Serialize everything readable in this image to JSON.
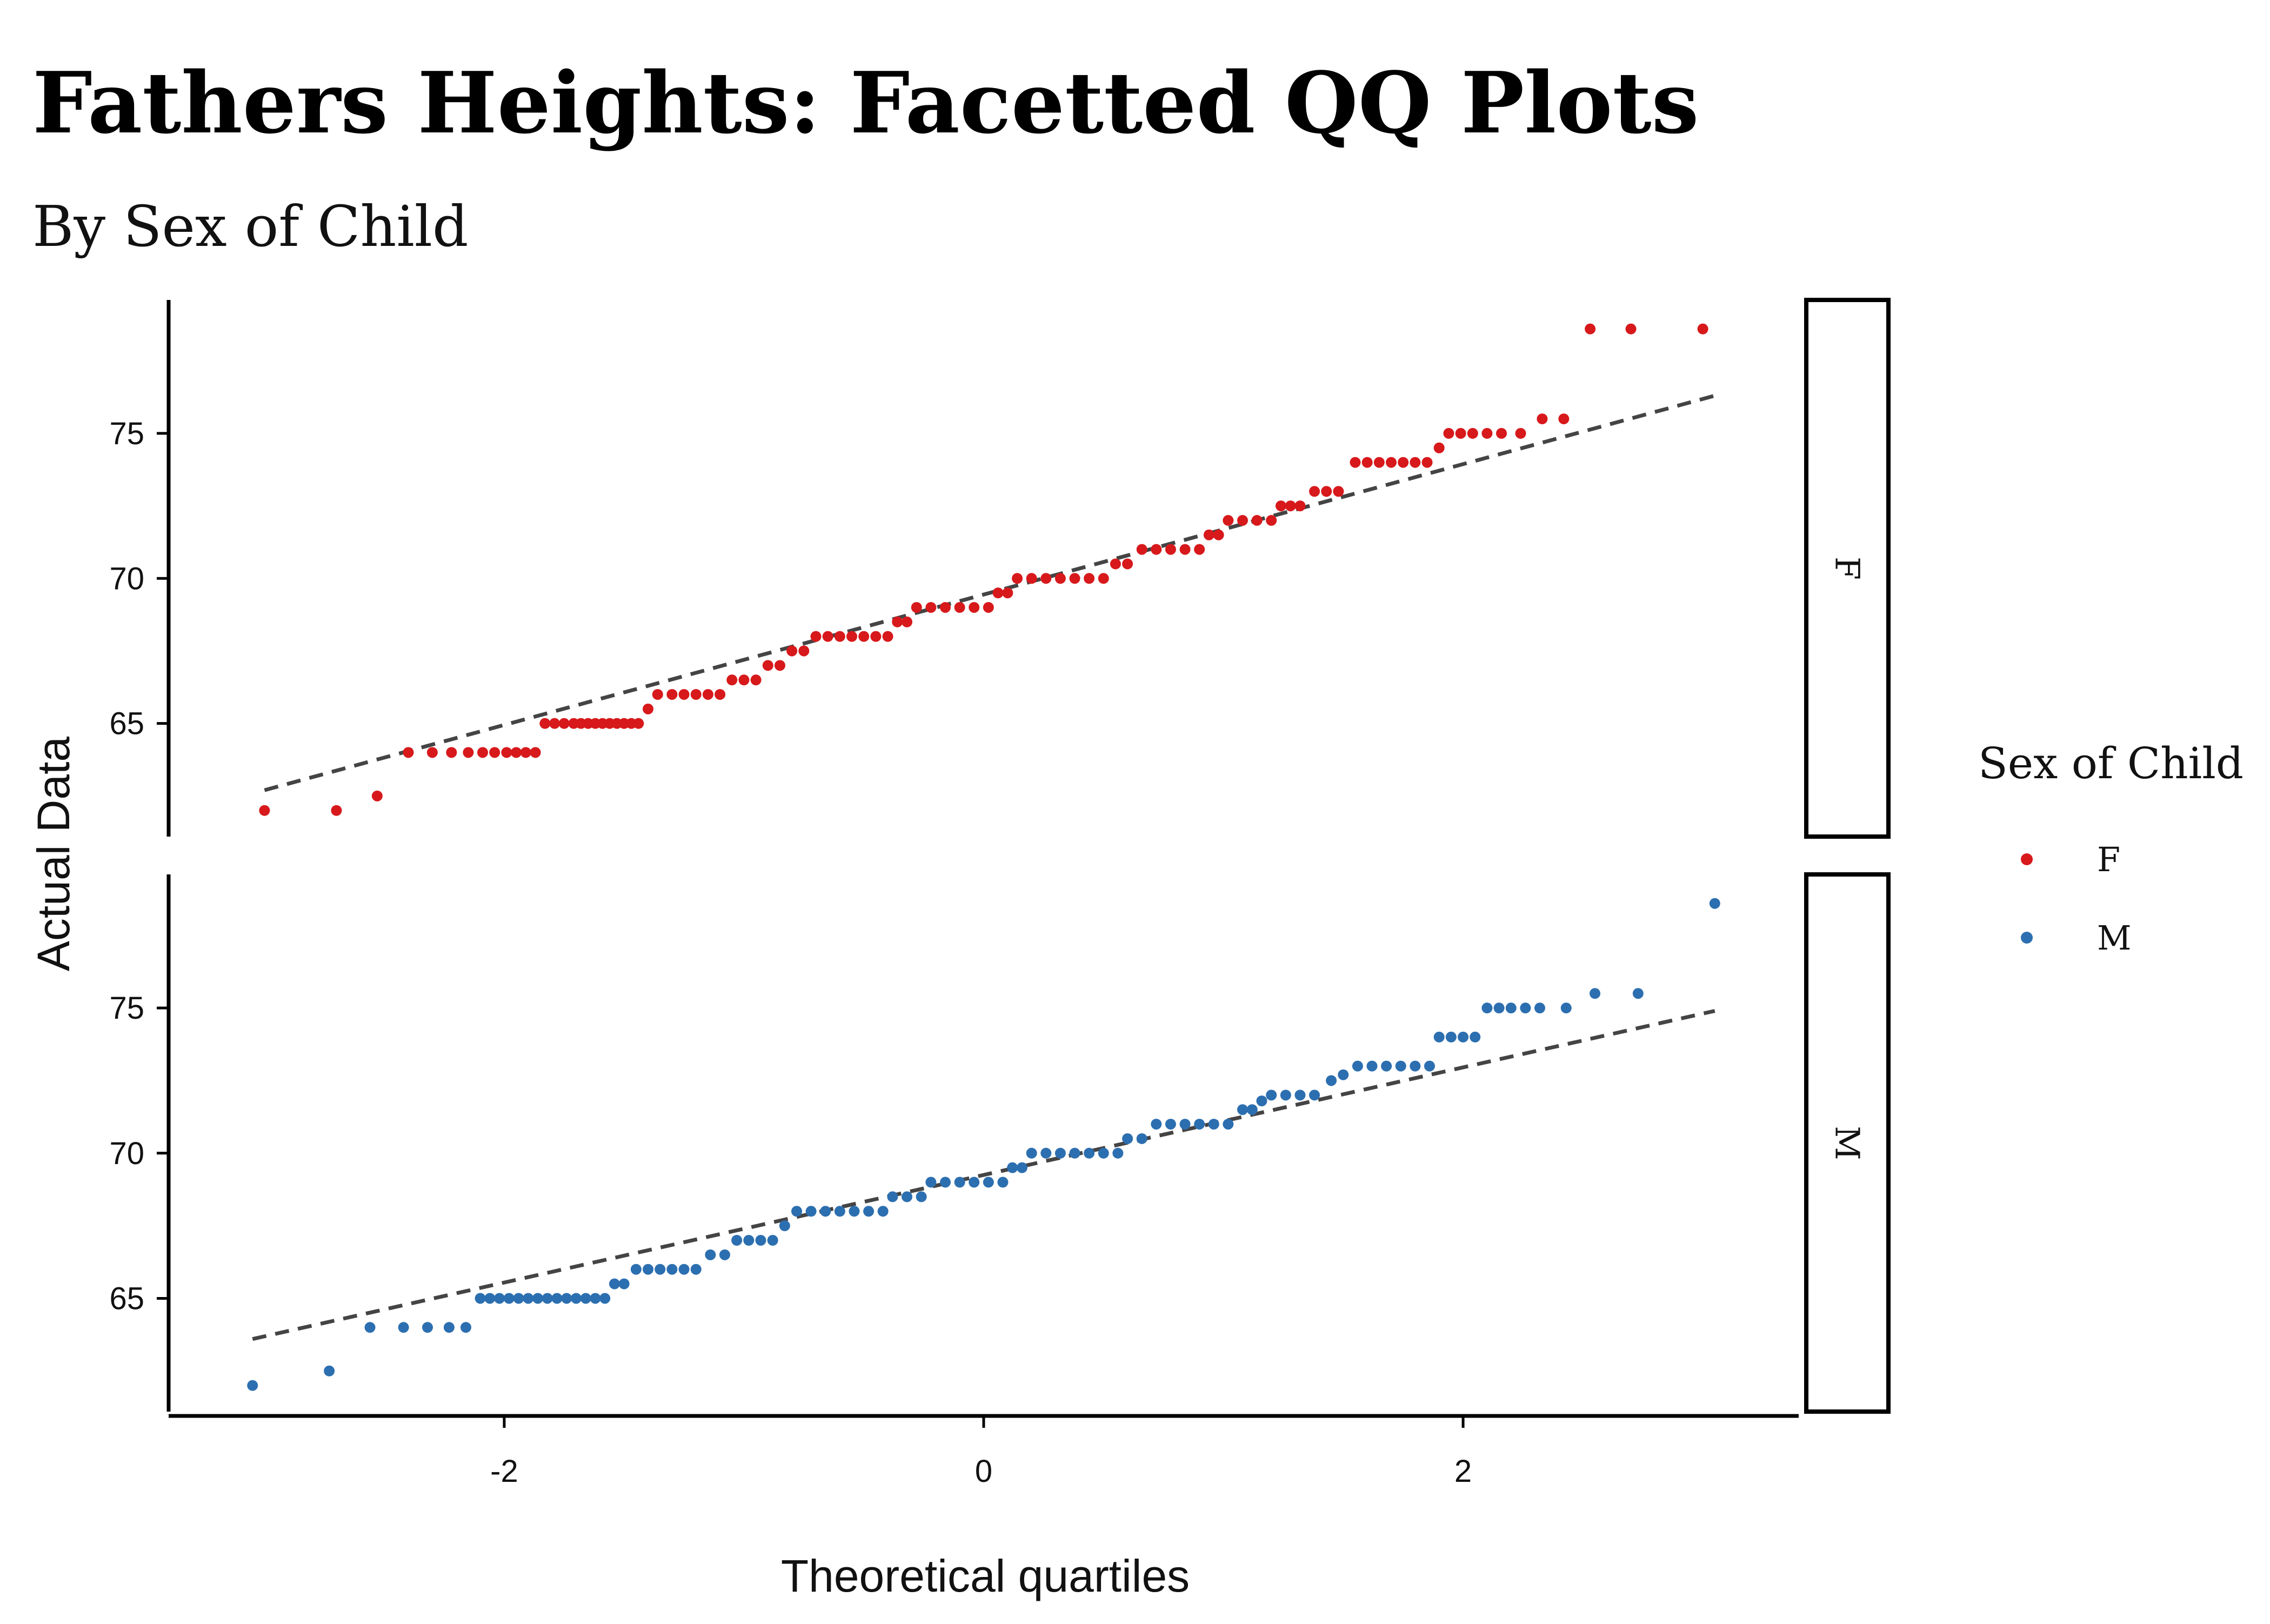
{
  "chart_data": {
    "type": "scatter",
    "title": "Fathers Heights: Facetted QQ Plots",
    "subtitle": "By Sex of Child",
    "xlabel": "Theoretical quartiles",
    "ylabel": "Actual Data",
    "xlim": [
      -3.4,
      3.4
    ],
    "ylim": [
      61.1,
      79.6
    ],
    "xticks": [
      -2,
      0,
      2
    ],
    "xtick_labels": [
      "-2",
      "0",
      "2"
    ],
    "yticks": [
      65,
      70,
      75
    ],
    "ytick_labels": [
      "65",
      "70",
      "75"
    ],
    "grid": false,
    "facets": [
      "F",
      "M"
    ],
    "legend": {
      "title": "Sex of Child",
      "placement": "right",
      "entries": [
        {
          "label": "F",
          "color": "#d7191c"
        },
        {
          "label": "M",
          "color": "#2c6fb0"
        }
      ]
    },
    "reference_line_color": "#444444",
    "series": [
      {
        "name": "F",
        "color": "#d7191c",
        "points": [
          [
            -3.0,
            62.0
          ],
          [
            -2.7,
            62.0
          ],
          [
            -2.53,
            62.5
          ],
          [
            -2.4,
            64.0
          ],
          [
            -2.3,
            64.0
          ],
          [
            -2.22,
            64.0
          ],
          [
            -2.15,
            64.0
          ],
          [
            -2.09,
            64.0
          ],
          [
            -2.04,
            64.0
          ],
          [
            -1.99,
            64.0
          ],
          [
            -1.95,
            64.0
          ],
          [
            -1.91,
            64.0
          ],
          [
            -1.87,
            64.0
          ],
          [
            -1.83,
            65.0
          ],
          [
            -1.79,
            65.0
          ],
          [
            -1.75,
            65.0
          ],
          [
            -1.71,
            65.0
          ],
          [
            -1.68,
            65.0
          ],
          [
            -1.65,
            65.0
          ],
          [
            -1.62,
            65.0
          ],
          [
            -1.59,
            65.0
          ],
          [
            -1.56,
            65.0
          ],
          [
            -1.53,
            65.0
          ],
          [
            -1.5,
            65.0
          ],
          [
            -1.47,
            65.0
          ],
          [
            -1.44,
            65.0
          ],
          [
            -1.4,
            65.5
          ],
          [
            -1.36,
            66.0
          ],
          [
            -1.3,
            66.0
          ],
          [
            -1.25,
            66.0
          ],
          [
            -1.2,
            66.0
          ],
          [
            -1.15,
            66.0
          ],
          [
            -1.1,
            66.0
          ],
          [
            -1.05,
            66.5
          ],
          [
            -1.0,
            66.5
          ],
          [
            -0.95,
            66.5
          ],
          [
            -0.9,
            67.0
          ],
          [
            -0.85,
            67.0
          ],
          [
            -0.8,
            67.5
          ],
          [
            -0.75,
            67.5
          ],
          [
            -0.7,
            68.0
          ],
          [
            -0.65,
            68.0
          ],
          [
            -0.6,
            68.0
          ],
          [
            -0.55,
            68.0
          ],
          [
            -0.5,
            68.0
          ],
          [
            -0.45,
            68.0
          ],
          [
            -0.4,
            68.0
          ],
          [
            -0.36,
            68.5
          ],
          [
            -0.32,
            68.5
          ],
          [
            -0.28,
            69.0
          ],
          [
            -0.22,
            69.0
          ],
          [
            -0.16,
            69.0
          ],
          [
            -0.1,
            69.0
          ],
          [
            -0.04,
            69.0
          ],
          [
            0.02,
            69.0
          ],
          [
            0.06,
            69.5
          ],
          [
            0.1,
            69.5
          ],
          [
            0.14,
            70.0
          ],
          [
            0.2,
            70.0
          ],
          [
            0.26,
            70.0
          ],
          [
            0.32,
            70.0
          ],
          [
            0.38,
            70.0
          ],
          [
            0.44,
            70.0
          ],
          [
            0.5,
            70.0
          ],
          [
            0.55,
            70.5
          ],
          [
            0.6,
            70.5
          ],
          [
            0.66,
            71.0
          ],
          [
            0.72,
            71.0
          ],
          [
            0.78,
            71.0
          ],
          [
            0.84,
            71.0
          ],
          [
            0.9,
            71.0
          ],
          [
            0.94,
            71.5
          ],
          [
            0.98,
            71.5
          ],
          [
            1.02,
            72.0
          ],
          [
            1.08,
            72.0
          ],
          [
            1.14,
            72.0
          ],
          [
            1.2,
            72.0
          ],
          [
            1.24,
            72.5
          ],
          [
            1.28,
            72.5
          ],
          [
            1.32,
            72.5
          ],
          [
            1.38,
            73.0
          ],
          [
            1.43,
            73.0
          ],
          [
            1.48,
            73.0
          ],
          [
            1.55,
            74.0
          ],
          [
            1.6,
            74.0
          ],
          [
            1.65,
            74.0
          ],
          [
            1.7,
            74.0
          ],
          [
            1.75,
            74.0
          ],
          [
            1.8,
            74.0
          ],
          [
            1.85,
            74.0
          ],
          [
            1.9,
            74.5
          ],
          [
            1.94,
            75.0
          ],
          [
            1.99,
            75.0
          ],
          [
            2.04,
            75.0
          ],
          [
            2.1,
            75.0
          ],
          [
            2.16,
            75.0
          ],
          [
            2.24,
            75.0
          ],
          [
            2.33,
            75.5
          ],
          [
            2.42,
            75.5
          ],
          [
            2.53,
            78.6
          ],
          [
            2.7,
            78.6
          ],
          [
            3.0,
            78.6
          ]
        ],
        "reference_line": [
          [
            -3.0,
            62.7
          ],
          [
            3.05,
            76.3
          ]
        ]
      },
      {
        "name": "M",
        "color": "#2c6fb0",
        "points": [
          [
            -3.05,
            62.0
          ],
          [
            -2.73,
            62.5
          ],
          [
            -2.56,
            64.0
          ],
          [
            -2.42,
            64.0
          ],
          [
            -2.32,
            64.0
          ],
          [
            -2.23,
            64.0
          ],
          [
            -2.16,
            64.0
          ],
          [
            -2.1,
            65.0
          ],
          [
            -2.06,
            65.0
          ],
          [
            -2.02,
            65.0
          ],
          [
            -1.98,
            65.0
          ],
          [
            -1.94,
            65.0
          ],
          [
            -1.9,
            65.0
          ],
          [
            -1.86,
            65.0
          ],
          [
            -1.82,
            65.0
          ],
          [
            -1.78,
            65.0
          ],
          [
            -1.74,
            65.0
          ],
          [
            -1.7,
            65.0
          ],
          [
            -1.66,
            65.0
          ],
          [
            -1.62,
            65.0
          ],
          [
            -1.58,
            65.0
          ],
          [
            -1.54,
            65.5
          ],
          [
            -1.5,
            65.5
          ],
          [
            -1.45,
            66.0
          ],
          [
            -1.4,
            66.0
          ],
          [
            -1.35,
            66.0
          ],
          [
            -1.3,
            66.0
          ],
          [
            -1.25,
            66.0
          ],
          [
            -1.2,
            66.0
          ],
          [
            -1.14,
            66.5
          ],
          [
            -1.08,
            66.5
          ],
          [
            -1.03,
            67.0
          ],
          [
            -0.98,
            67.0
          ],
          [
            -0.93,
            67.0
          ],
          [
            -0.88,
            67.0
          ],
          [
            -0.83,
            67.5
          ],
          [
            -0.78,
            68.0
          ],
          [
            -0.72,
            68.0
          ],
          [
            -0.66,
            68.0
          ],
          [
            -0.6,
            68.0
          ],
          [
            -0.54,
            68.0
          ],
          [
            -0.48,
            68.0
          ],
          [
            -0.42,
            68.0
          ],
          [
            -0.38,
            68.5
          ],
          [
            -0.32,
            68.5
          ],
          [
            -0.26,
            68.5
          ],
          [
            -0.22,
            69.0
          ],
          [
            -0.16,
            69.0
          ],
          [
            -0.1,
            69.0
          ],
          [
            -0.04,
            69.0
          ],
          [
            0.02,
            69.0
          ],
          [
            0.08,
            69.0
          ],
          [
            0.12,
            69.5
          ],
          [
            0.16,
            69.5
          ],
          [
            0.2,
            70.0
          ],
          [
            0.26,
            70.0
          ],
          [
            0.32,
            70.0
          ],
          [
            0.38,
            70.0
          ],
          [
            0.44,
            70.0
          ],
          [
            0.5,
            70.0
          ],
          [
            0.56,
            70.0
          ],
          [
            0.6,
            70.5
          ],
          [
            0.66,
            70.5
          ],
          [
            0.72,
            71.0
          ],
          [
            0.78,
            71.0
          ],
          [
            0.84,
            71.0
          ],
          [
            0.9,
            71.0
          ],
          [
            0.96,
            71.0
          ],
          [
            1.02,
            71.0
          ],
          [
            1.08,
            71.5
          ],
          [
            1.12,
            71.5
          ],
          [
            1.16,
            71.8
          ],
          [
            1.2,
            72.0
          ],
          [
            1.26,
            72.0
          ],
          [
            1.32,
            72.0
          ],
          [
            1.38,
            72.0
          ],
          [
            1.45,
            72.5
          ],
          [
            1.5,
            72.7
          ],
          [
            1.56,
            73.0
          ],
          [
            1.62,
            73.0
          ],
          [
            1.68,
            73.0
          ],
          [
            1.74,
            73.0
          ],
          [
            1.8,
            73.0
          ],
          [
            1.86,
            73.0
          ],
          [
            1.9,
            74.0
          ],
          [
            1.95,
            74.0
          ],
          [
            2.0,
            74.0
          ],
          [
            2.05,
            74.0
          ],
          [
            2.1,
            75.0
          ],
          [
            2.15,
            75.0
          ],
          [
            2.2,
            75.0
          ],
          [
            2.26,
            75.0
          ],
          [
            2.32,
            75.0
          ],
          [
            2.43,
            75.0
          ],
          [
            2.55,
            75.5
          ],
          [
            2.73,
            75.5
          ],
          [
            3.05,
            78.6
          ]
        ],
        "reference_line": [
          [
            -3.05,
            63.6
          ],
          [
            3.05,
            74.9
          ]
        ]
      }
    ]
  }
}
